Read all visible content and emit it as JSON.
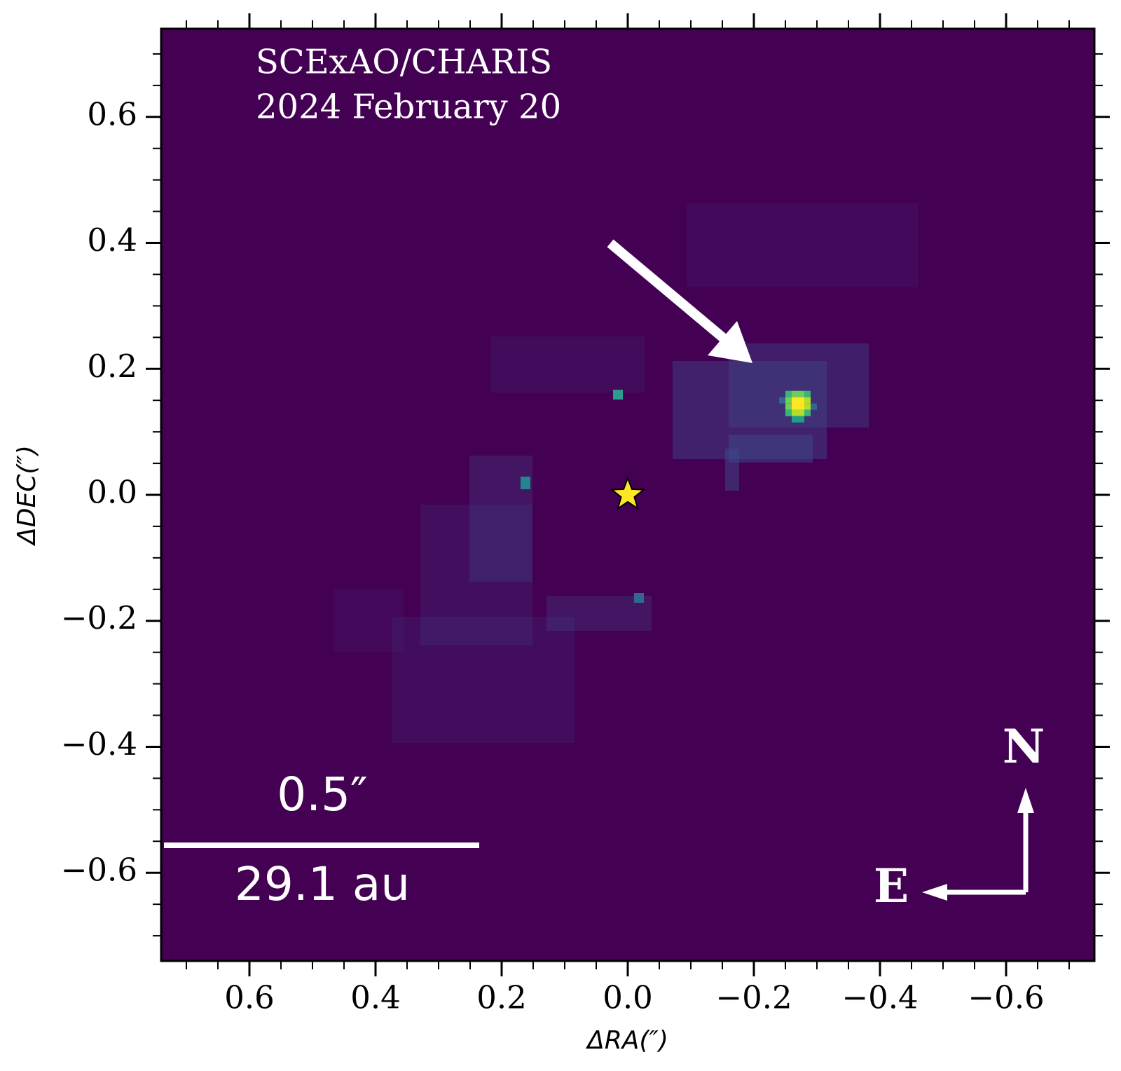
{
  "chart_data": {
    "type": "image",
    "annotations": [
      "SCExAO/CHARIS",
      "2024 February 20"
    ],
    "xlabel": "ΔRA(″)",
    "ylabel": "ΔDEC(″)",
    "xlim": [
      0.74,
      -0.74
    ],
    "ylim": [
      -0.74,
      0.74
    ],
    "xticks": [
      {
        "value": 0.6,
        "label": "0.6"
      },
      {
        "value": 0.4,
        "label": "0.4"
      },
      {
        "value": 0.2,
        "label": "0.2"
      },
      {
        "value": 0,
        "label": "0.0"
      },
      {
        "value": -0.2,
        "label": "−0.2"
      },
      {
        "value": -0.4,
        "label": "−0.4"
      },
      {
        "value": -0.6,
        "label": "−0.6"
      }
    ],
    "yticks": [
      {
        "value": 0.6,
        "label": "0.6"
      },
      {
        "value": 0.4,
        "label": "0.4"
      },
      {
        "value": 0.2,
        "label": "0.2"
      },
      {
        "value": 0,
        "label": "0.0"
      },
      {
        "value": -0.2,
        "label": "−0.2"
      },
      {
        "value": -0.4,
        "label": "−0.4"
      },
      {
        "value": -0.6,
        "label": "−0.6"
      }
    ],
    "minor_ticks": [
      0.7,
      0.65,
      0.55,
      0.5,
      0.45,
      0.35,
      0.3,
      0.25,
      0.15,
      0.1,
      0.05,
      -0.05,
      -0.1,
      -0.15,
      -0.25,
      -0.3,
      -0.35,
      -0.45,
      -0.5,
      -0.55,
      -0.65,
      -0.7
    ],
    "background_color": "#440154",
    "star": {
      "x": 0,
      "y": 0,
      "color": "#fde725"
    },
    "companion": {
      "x": -0.27,
      "y": 0.145,
      "color": "#fde725"
    },
    "scale_bar": {
      "length": 0.5,
      "label": "0.5″",
      "physical_label": "29.1 au"
    },
    "compass": {
      "north": "N",
      "east": "E"
    }
  }
}
